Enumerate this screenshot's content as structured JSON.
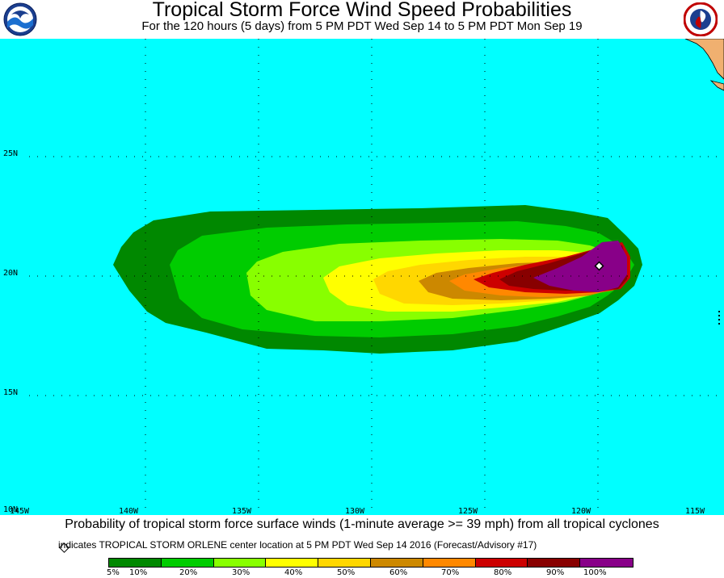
{
  "header": {
    "title": "Tropical Storm Force Wind Speed Probabilities",
    "subtitle": "For the 120 hours (5 days) from 5 PM PDT Wed Sep 14 to 5 PM PDT Mon Sep 19"
  },
  "map": {
    "ocean_color": "#00ffff",
    "land_color": "#f0b070",
    "lat_labels": [
      "25N",
      "20N",
      "15N",
      "10N"
    ],
    "lon_labels": [
      "145W",
      "140W",
      "135W",
      "130W",
      "125W",
      "120W",
      "115W"
    ],
    "storm_center": {
      "lon": -119.5,
      "lat": 20.5
    }
  },
  "footer": {
    "description": "Probability of tropical storm force surface winds (1-minute average >= 39 mph) from all tropical cyclones",
    "center_note": "indicates TROPICAL STORM ORLENE center location at 5 PM PDT Wed Sep 14 2016 (Forecast/Advisory #17)"
  },
  "legend": {
    "colors": [
      "#008800",
      "#00cc00",
      "#88ff00",
      "#ffff00",
      "#ffd700",
      "#cc8800",
      "#ff8800",
      "#cc0000",
      "#880000",
      "#880088"
    ],
    "labels": [
      "5%",
      "10%",
      "20%",
      "30%",
      "40%",
      "50%",
      "60%",
      "70%",
      "80%",
      "90%",
      "100%"
    ]
  }
}
